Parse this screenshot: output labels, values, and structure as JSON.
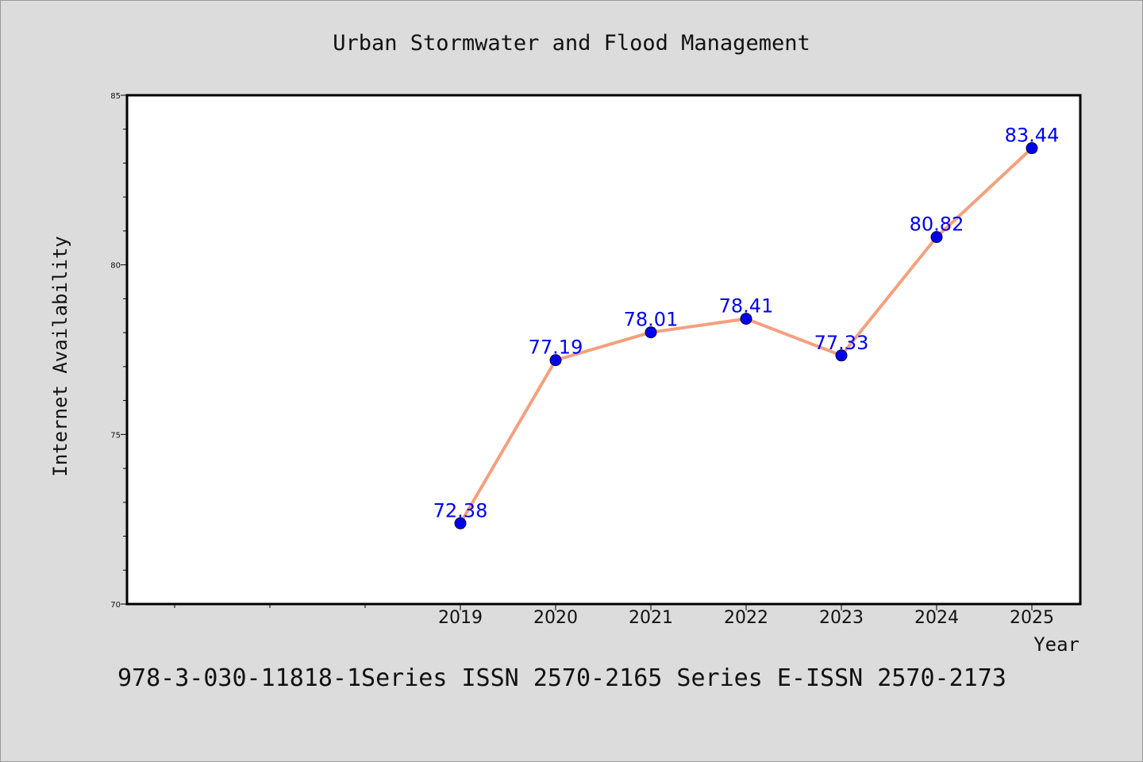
{
  "chart_data": {
    "type": "line",
    "title": "Urban Stormwater and Flood Management",
    "xlabel": "Year",
    "ylabel": "Internet Availability",
    "categories": [
      "2019",
      "2020",
      "2021",
      "2022",
      "2023",
      "2024",
      "2025"
    ],
    "series": [
      {
        "values": [
          72.38,
          77.19,
          78.01,
          78.41,
          77.33,
          80.82,
          83.44
        ],
        "data_labels": [
          "72.38",
          "77.19",
          "78.01",
          "78.41",
          "77.33",
          "80.82",
          "83.44"
        ],
        "line_color": "#f4a07e",
        "marker_color": "#0000ee",
        "label_color": "#0000ee"
      }
    ],
    "ylim": [
      70,
      85
    ],
    "yticks": [
      "70",
      "75",
      "80",
      "85"
    ],
    "grid": false,
    "legend": "none",
    "footer": "978-3-030-11818-1Series ISSN 2570-2165 Series E-ISSN 2570-2173",
    "background_color": "#dcdcdc",
    "plot_background_color": "#ffffff"
  }
}
